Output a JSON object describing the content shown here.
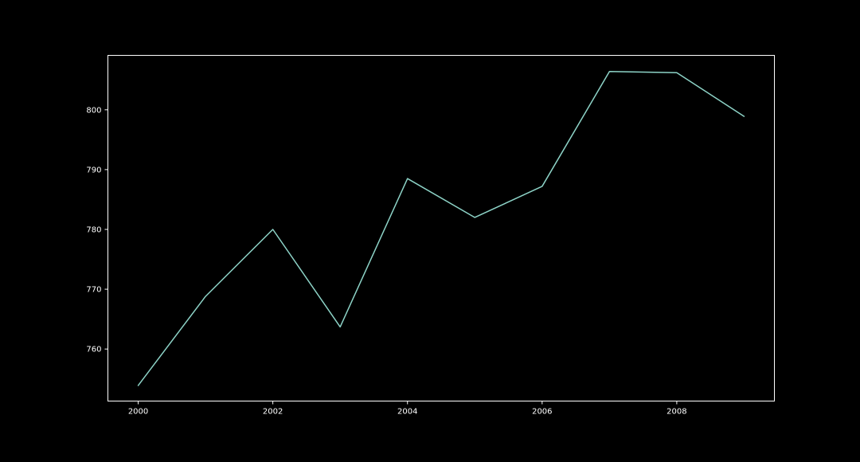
{
  "chart_data": {
    "type": "line",
    "title": "",
    "xlabel": "",
    "ylabel": "",
    "x": [
      2000,
      2001,
      2002,
      2003,
      2004,
      2005,
      2006,
      2007,
      2008,
      2009
    ],
    "series": [
      {
        "values": [
          753.9,
          768.8,
          780.0,
          763.7,
          788.5,
          782.0,
          787.2,
          806.4,
          806.2,
          798.9
        ],
        "color": "#8dd3c7"
      }
    ],
    "xlim": [
      1999.55,
      2009.45
    ],
    "ylim": [
      751.3,
      809.1
    ],
    "xticks": [
      2000,
      2002,
      2004,
      2006,
      2008
    ],
    "yticks": [
      760,
      770,
      780,
      790,
      800
    ],
    "xtick_labels": [
      "2000",
      "2002",
      "2004",
      "2006",
      "2008"
    ],
    "ytick_labels": [
      "760",
      "770",
      "780",
      "790",
      "800"
    ],
    "grid": false,
    "legend": "none",
    "colors": {
      "background": "#000000",
      "axes": "#ffffff",
      "text": "#ffffff"
    }
  }
}
